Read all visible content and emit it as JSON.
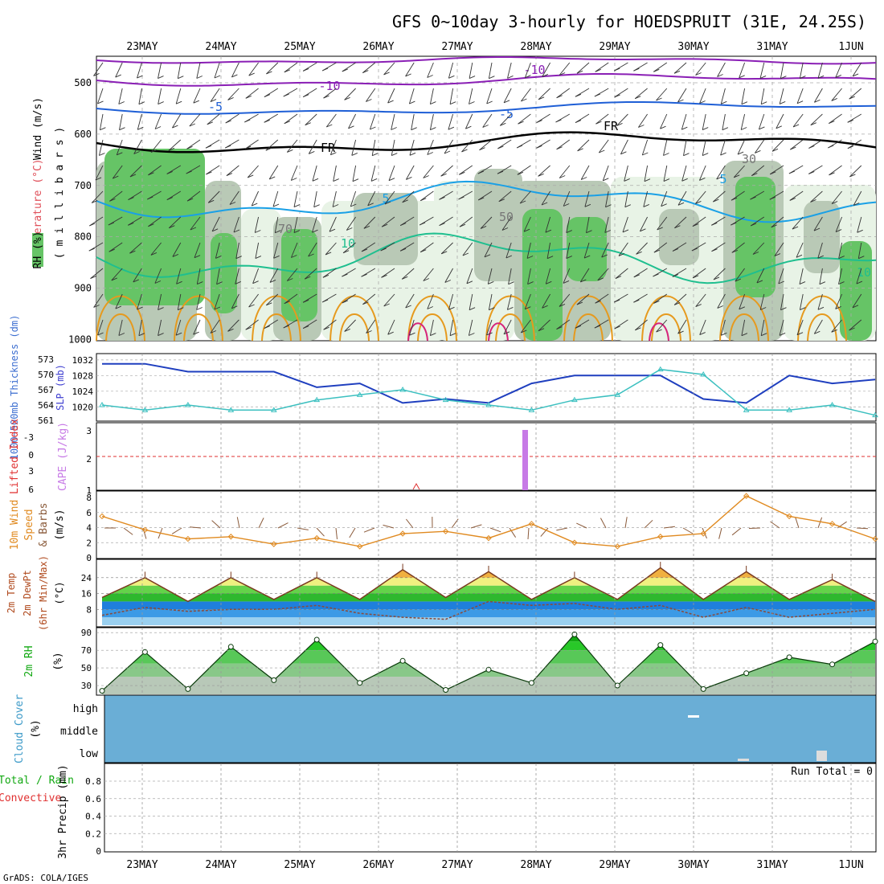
{
  "title": "GFS 0~10day 3-hourly for HOEDSPRUIT (31E, 24.25S)",
  "footer": "GrADS: COLA/IGES",
  "run_total": "Run Total = 0",
  "dates": [
    "23MAY",
    "24MAY",
    "25MAY",
    "26MAY",
    "27MAY",
    "28MAY",
    "29MAY",
    "30MAY",
    "31MAY",
    "1JUN"
  ],
  "colors": {
    "temp_minus10": "#8a1fb5",
    "temp_minus5": "#1f5fd6",
    "temp_fr": "#000000",
    "temp_5": "#1aa0e6",
    "temp_10": "#1fbf8f",
    "temp_warm": "#e69a1e",
    "temp_hot": "#d6247a",
    "rh_light": "#e8f3e6",
    "rh_mid": "#b9c9b6",
    "rh_dark": "#66c466",
    "slp": "#1f3fbf",
    "thickness": "#3cc0c0",
    "cape": "#c77ae6",
    "lifted_index": "#e03030",
    "wind_speed": "#e08a20",
    "wind_barb": "#8a5a3a",
    "cloud": "#6aaed6",
    "rh2m": "#11a811"
  },
  "panels": {
    "upper": {
      "ylabel_wind": "Wind (m/s)",
      "ylabel_temp": "Temperature (°C)",
      "ylabel_rh": "RH (%)",
      "ylabel_unit": "( m i l l i b a r s )",
      "yticks": [
        "500",
        "600",
        "700",
        "800",
        "900",
        "1000"
      ],
      "contour_labels": [
        "-10",
        "-10",
        "-5",
        "-5",
        "FR",
        "FR",
        "5",
        "5",
        "10",
        "10",
        "50",
        "70",
        "30"
      ]
    },
    "slp": {
      "ylabel_left": "1000~500mb Thickness (dm)",
      "ylabel_right": "SLP (mb)",
      "yticks_thickness": [
        "573",
        "570",
        "567",
        "564",
        "561"
      ],
      "yticks_slp": [
        "1032",
        "1028",
        "1024",
        "1020"
      ]
    },
    "cape": {
      "ylabel_left": "Lifted Index",
      "ylabel_right": "CAPE (J/kg)",
      "yticks_li": [
        "-3",
        "0",
        "3",
        "6"
      ],
      "yticks_cape": [
        "3",
        "2",
        "1"
      ]
    },
    "wind10": {
      "ylabel": "10m Wind Speed & Barbs (m/s)",
      "yticks": [
        "8",
        "6",
        "4",
        "2",
        "0"
      ]
    },
    "temp2m": {
      "ylabel": "2m Temp 2m DewPt (6hr Min/Max) (°C)",
      "yticks": [
        "24",
        "16",
        "8"
      ]
    },
    "rh2m": {
      "ylabel": "2m RH (%)",
      "yticks": [
        "90",
        "70",
        "50",
        "30"
      ]
    },
    "cloud": {
      "ylabel": "Cloud Cover (%)",
      "levels": [
        "high",
        "middle",
        "low"
      ]
    },
    "precip": {
      "ylabel_total": "Total / Rain",
      "ylabel_conv": "Convective",
      "ylabel_unit": "3hr Precip (mm)",
      "yticks": [
        "0.8",
        "0.6",
        "0.4",
        "0.2",
        "0"
      ]
    }
  },
  "chart_data": [
    {
      "type": "line",
      "title": "SLP and 1000~500mb Thickness",
      "x": [
        "23MAY",
        "23MAY 12",
        "24MAY",
        "24MAY 12",
        "25MAY",
        "25MAY 12",
        "26MAY",
        "26MAY 12",
        "27MAY",
        "27MAY 12",
        "28MAY",
        "28MAY 12",
        "29MAY",
        "29MAY 12",
        "30MAY",
        "30MAY 12",
        "31MAY",
        "31MAY 12",
        "1JUN"
      ],
      "series": [
        {
          "name": "SLP (mb)",
          "values": [
            1031,
            1031,
            1029,
            1029,
            1029,
            1025,
            1026,
            1021,
            1022,
            1021,
            1026,
            1028,
            1028,
            1028,
            1022,
            1021,
            1028,
            1026,
            1027
          ]
        },
        {
          "name": "Thickness (dm)",
          "values": [
            564,
            563,
            564,
            563,
            563,
            565,
            566,
            567,
            565,
            564,
            563,
            565,
            566,
            571,
            570,
            563,
            563,
            564,
            562
          ]
        }
      ]
    },
    {
      "type": "bar",
      "title": "CAPE (J/kg)",
      "x": [
        "27MAY 21"
      ],
      "values": [
        3
      ]
    },
    {
      "type": "line",
      "title": "10m Wind Speed (m/s)",
      "x": [
        "23MAY",
        "23MAY 12",
        "24MAY",
        "24MAY 12",
        "25MAY",
        "25MAY 12",
        "26MAY",
        "26MAY 12",
        "27MAY",
        "27MAY 12",
        "28MAY",
        "28MAY 12",
        "29MAY",
        "29MAY 12",
        "30MAY",
        "30MAY 12",
        "31MAY",
        "31MAY 12",
        "1JUN"
      ],
      "values": [
        5.5,
        3.7,
        2.5,
        2.8,
        1.8,
        2.6,
        1.5,
        3.2,
        3.5,
        2.6,
        4.5,
        2.0,
        1.5,
        2.8,
        3.2,
        8.2,
        5.5,
        4.5,
        2.5
      ]
    },
    {
      "type": "area",
      "title": "2m Temp (°C)",
      "x": [
        "23MAY",
        "23MAY 12",
        "24MAY",
        "24MAY 12",
        "25MAY",
        "25MAY 12",
        "26MAY",
        "26MAY 12",
        "27MAY",
        "27MAY 12",
        "28MAY",
        "28MAY 12",
        "29MAY",
        "29MAY 12",
        "30MAY",
        "30MAY 12",
        "31MAY",
        "31MAY 12",
        "1JUN"
      ],
      "series": [
        {
          "name": "2m Temp",
          "values": [
            14,
            24,
            12,
            24,
            13,
            24,
            13,
            28,
            14,
            27,
            13,
            24,
            13,
            29,
            13,
            27,
            13,
            23,
            12
          ]
        },
        {
          "name": "2m DewPt",
          "values": [
            5,
            9,
            7,
            8,
            8,
            10,
            6,
            4,
            3,
            12,
            10,
            11,
            8,
            10,
            4,
            9,
            4,
            6,
            8
          ]
        }
      ]
    },
    {
      "type": "area",
      "title": "2m RH (%)",
      "x": [
        "23MAY",
        "23MAY 12",
        "24MAY",
        "24MAY 12",
        "25MAY",
        "25MAY 12",
        "26MAY",
        "26MAY 12",
        "27MAY",
        "27MAY 12",
        "28MAY",
        "28MAY 12",
        "29MAY",
        "29MAY 12",
        "30MAY",
        "30MAY 12",
        "31MAY",
        "31MAY 12",
        "1JUN"
      ],
      "values": [
        24,
        68,
        26,
        74,
        36,
        82,
        33,
        58,
        25,
        48,
        33,
        88,
        30,
        76,
        26,
        44,
        62,
        54,
        80
      ]
    }
  ]
}
